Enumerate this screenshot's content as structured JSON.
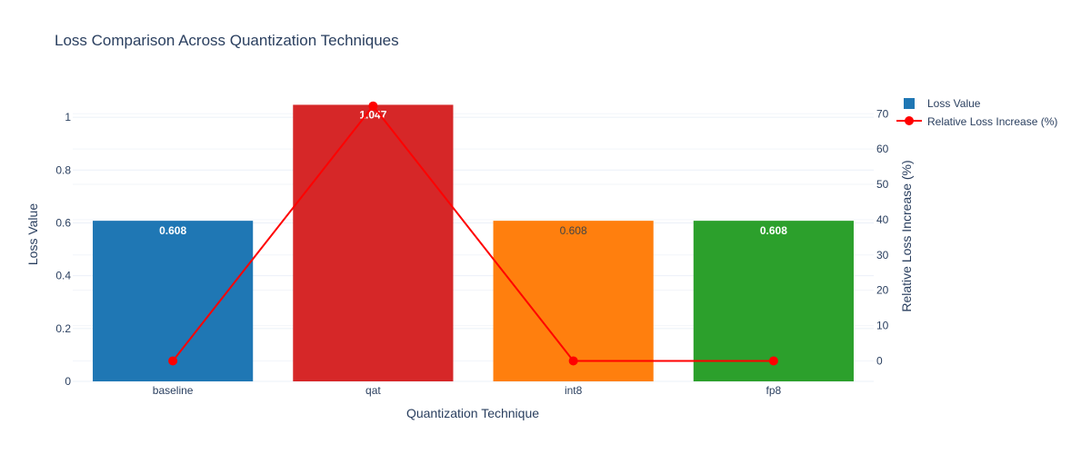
{
  "chart_data": {
    "type": "bar",
    "title": "Loss Comparison Across Quantization Techniques",
    "xlabel": "Quantization Technique",
    "ylabel": "Loss Value",
    "y2label": "Relative Loss Increase (%)",
    "categories": [
      "baseline",
      "qat",
      "int8",
      "fp8"
    ],
    "ylim": [
      0,
      1.1
    ],
    "y2lim": [
      -5.8,
      76.5
    ],
    "yticks": [
      0,
      0.2,
      0.4,
      0.6,
      0.8,
      1
    ],
    "ytick_labels": [
      "0",
      "0.2",
      "0.4",
      "0.6",
      "0.8",
      "1"
    ],
    "y2ticks": [
      0,
      10,
      20,
      30,
      40,
      50,
      60,
      70
    ],
    "y2tick_labels": [
      "0",
      "10",
      "20",
      "30",
      "40",
      "50",
      "60",
      "70"
    ],
    "grid": true,
    "legend_position": "top-right",
    "series": [
      {
        "name": "Loss Value",
        "type": "bar",
        "axis": "y",
        "values": [
          0.608,
          1.047,
          0.608,
          0.608
        ],
        "labels": [
          "0.608",
          "1.047",
          "0.608",
          "0.608"
        ],
        "colors": [
          "#1f77b4",
          "#d62728",
          "#ff7f0e",
          "#2ca02c"
        ],
        "legend_color": "#1f77b4"
      },
      {
        "name": "Relative Loss Increase (%)",
        "type": "line",
        "axis": "y2",
        "values": [
          0,
          72.2,
          0,
          0
        ],
        "color": "#ff0000"
      }
    ]
  }
}
